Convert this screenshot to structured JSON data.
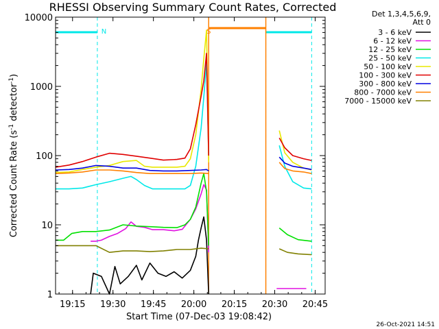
{
  "chart_data": {
    "type": "line",
    "title": "RHESSI Observing Summary Count Rates, Corrected",
    "xlabel": "Start Time (07-Dec-03 19:08:42)",
    "ylabel_main": "Corrected Count Rate (s",
    "ylabel_sup": "-1",
    "ylabel_rest": " detector",
    "ylabel_end": ")",
    "x_unit": "minutes after 19:08:42 UT",
    "xlim": [
      0,
      100
    ],
    "ylim": [
      1,
      10000
    ],
    "yscale": "log",
    "x_ticks": [
      {
        "label": "19:15",
        "v": 6.3
      },
      {
        "label": "19:30",
        "v": 21.3
      },
      {
        "label": "19:45",
        "v": 36.3
      },
      {
        "label": "20:00",
        "v": 51.3
      },
      {
        "label": "20:15",
        "v": 66.3
      },
      {
        "label": "20:30",
        "v": 81.3
      },
      {
        "label": "20:45",
        "v": 96.3
      }
    ],
    "y_ticks": [
      {
        "label": "1",
        "v": 1
      },
      {
        "label": "10",
        "v": 10
      },
      {
        "label": "100",
        "v": 100
      },
      {
        "label": "1000",
        "v": 1000
      },
      {
        "label": "10000",
        "v": 10000
      }
    ],
    "legend_header": [
      "Det 1,3,4,5,6,9,",
      "Att 0"
    ],
    "footer": "26-Oct-2021 14:51",
    "night_intervals": [
      [
        0,
        15.5
      ],
      [
        78,
        95
      ]
    ],
    "saa_intervals": [
      [
        56.8,
        78
      ]
    ],
    "flag_labels": [
      {
        "text": "N",
        "x": 17
      },
      {
        "text": "S",
        "x": 56
      }
    ],
    "series": [
      {
        "name": "3 - 6 keV",
        "color": "#000000",
        "points": [
          [
            13,
            1
          ],
          [
            14,
            2
          ],
          [
            17,
            1.8
          ],
          [
            20,
            1
          ],
          [
            22,
            2.5
          ],
          [
            24,
            1.4
          ],
          [
            27,
            1.8
          ],
          [
            30,
            2.6
          ],
          [
            32,
            1.6
          ],
          [
            35,
            2.8
          ],
          [
            38,
            2
          ],
          [
            41,
            1.8
          ],
          [
            44,
            2.1
          ],
          [
            47,
            1.7
          ],
          [
            50,
            2.2
          ],
          [
            52,
            3.5
          ],
          [
            53,
            6
          ],
          [
            54,
            9
          ],
          [
            55,
            13
          ],
          [
            56,
            6
          ],
          [
            56.8,
            1
          ]
        ]
      },
      {
        "name": "6 - 12 keV",
        "color": "#e010e0",
        "points": [
          [
            13,
            5.8
          ],
          [
            15,
            5.8
          ],
          [
            17,
            6
          ],
          [
            20,
            6.8
          ],
          [
            23,
            7.5
          ],
          [
            26,
            8.8
          ],
          [
            28,
            11
          ],
          [
            30,
            9.5
          ],
          [
            33,
            9.2
          ],
          [
            36,
            8.5
          ],
          [
            40,
            8.5
          ],
          [
            44,
            8.2
          ],
          [
            47,
            8.6
          ],
          [
            50,
            12
          ],
          [
            52,
            17
          ],
          [
            54,
            28
          ],
          [
            55,
            38
          ],
          [
            56,
            32
          ],
          [
            56.8,
            4
          ],
          null,
          [
            82,
            1.2
          ],
          [
            93,
            1.2
          ]
        ]
      },
      {
        "name": "12 - 25 keV",
        "color": "#00e000",
        "points": [
          [
            0,
            6
          ],
          [
            3,
            6
          ],
          [
            6,
            7.5
          ],
          [
            10,
            8
          ],
          [
            15,
            8
          ],
          [
            20,
            8.4
          ],
          [
            25,
            10
          ],
          [
            30,
            9.6
          ],
          [
            35,
            9.4
          ],
          [
            40,
            9.2
          ],
          [
            45,
            9.1
          ],
          [
            48,
            10
          ],
          [
            50,
            12
          ],
          [
            52,
            18
          ],
          [
            54,
            40
          ],
          [
            55,
            55
          ],
          [
            56,
            30
          ],
          [
            56.8,
            5
          ],
          null,
          [
            83,
            9
          ],
          [
            86,
            7.2
          ],
          [
            90,
            6.1
          ],
          [
            95,
            5.8
          ]
        ]
      },
      {
        "name": "25 - 50 keV",
        "color": "#00e8e8",
        "points": [
          [
            0,
            33
          ],
          [
            5,
            33
          ],
          [
            10,
            34
          ],
          [
            15,
            38
          ],
          [
            20,
            42
          ],
          [
            25,
            47
          ],
          [
            28,
            50
          ],
          [
            30,
            45
          ],
          [
            33,
            37
          ],
          [
            36,
            33
          ],
          [
            40,
            33
          ],
          [
            45,
            33
          ],
          [
            48,
            33
          ],
          [
            50,
            37
          ],
          [
            52,
            70
          ],
          [
            54,
            250
          ],
          [
            55,
            700
          ],
          [
            56,
            2200
          ],
          [
            56.8,
            100
          ],
          null,
          [
            83,
            140
          ],
          [
            85,
            70
          ],
          [
            88,
            42
          ],
          [
            92,
            34
          ],
          [
            95,
            33
          ]
        ]
      },
      {
        "name": "50 - 100 keV",
        "color": "#e8e800",
        "points": [
          [
            0,
            57
          ],
          [
            5,
            58
          ],
          [
            10,
            63
          ],
          [
            15,
            68
          ],
          [
            20,
            72
          ],
          [
            25,
            82
          ],
          [
            30,
            85
          ],
          [
            33,
            70
          ],
          [
            36,
            68
          ],
          [
            40,
            68
          ],
          [
            45,
            68
          ],
          [
            48,
            70
          ],
          [
            50,
            90
          ],
          [
            52,
            200
          ],
          [
            54,
            900
          ],
          [
            55,
            2500
          ],
          [
            56,
            6500
          ],
          [
            56.8,
            80
          ],
          null,
          [
            83,
            230
          ],
          [
            85,
            110
          ],
          [
            88,
            80
          ],
          [
            92,
            66
          ],
          [
            95,
            62
          ]
        ]
      },
      {
        "name": "100 - 300 keV",
        "color": "#e00000",
        "points": [
          [
            0,
            68
          ],
          [
            5,
            73
          ],
          [
            10,
            82
          ],
          [
            15,
            95
          ],
          [
            20,
            108
          ],
          [
            25,
            104
          ],
          [
            30,
            98
          ],
          [
            35,
            92
          ],
          [
            40,
            86
          ],
          [
            45,
            88
          ],
          [
            48,
            92
          ],
          [
            50,
            125
          ],
          [
            52,
            280
          ],
          [
            54,
            720
          ],
          [
            55,
            1200
          ],
          [
            56,
            3000
          ],
          [
            56.8,
            100
          ],
          null,
          [
            83,
            180
          ],
          [
            85,
            130
          ],
          [
            88,
            100
          ],
          [
            92,
            90
          ],
          [
            95,
            85
          ]
        ]
      },
      {
        "name": "300 - 800 keV",
        "color": "#0000e0",
        "points": [
          [
            0,
            62
          ],
          [
            5,
            63
          ],
          [
            10,
            66
          ],
          [
            15,
            72
          ],
          [
            20,
            70
          ],
          [
            25,
            66
          ],
          [
            30,
            66
          ],
          [
            35,
            61
          ],
          [
            40,
            60
          ],
          [
            45,
            60
          ],
          [
            50,
            61
          ],
          [
            54,
            62
          ],
          [
            56,
            63
          ],
          [
            56.8,
            60
          ],
          null,
          [
            83,
            95
          ],
          [
            85,
            78
          ],
          [
            88,
            70
          ],
          [
            92,
            66
          ],
          [
            95,
            63
          ]
        ]
      },
      {
        "name": "800 - 7000 keV",
        "color": "#ff8000",
        "points": [
          [
            0,
            55
          ],
          [
            5,
            56
          ],
          [
            10,
            58
          ],
          [
            15,
            62
          ],
          [
            20,
            62
          ],
          [
            25,
            60
          ],
          [
            30,
            57
          ],
          [
            35,
            55
          ],
          [
            40,
            55
          ],
          [
            45,
            55
          ],
          [
            50,
            55
          ],
          [
            54,
            56
          ],
          [
            56.8,
            55
          ],
          null,
          [
            83,
            80
          ],
          [
            85,
            65
          ],
          [
            88,
            60
          ],
          [
            92,
            58
          ],
          [
            95,
            55
          ]
        ]
      },
      {
        "name": "7000 - 15000 keV",
        "color": "#808000",
        "points": [
          [
            0,
            5
          ],
          [
            3,
            5
          ],
          [
            6,
            5
          ],
          [
            10,
            5
          ],
          [
            15,
            5
          ],
          [
            20,
            4
          ],
          [
            25,
            4.2
          ],
          [
            30,
            4.2
          ],
          [
            35,
            4.1
          ],
          [
            40,
            4.2
          ],
          [
            45,
            4.4
          ],
          [
            50,
            4.4
          ],
          [
            54,
            4.6
          ],
          [
            56.8,
            4.5
          ],
          null,
          [
            83,
            4.5
          ],
          [
            86,
            4
          ],
          [
            90,
            3.8
          ],
          [
            95,
            3.7
          ]
        ]
      }
    ]
  }
}
